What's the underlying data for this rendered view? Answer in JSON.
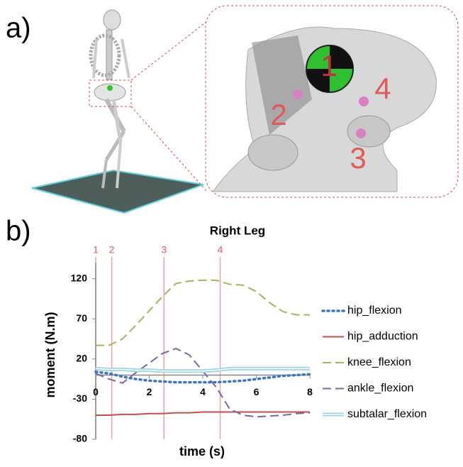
{
  "panel_labels": [
    "a)",
    "b)"
  ],
  "image_labels": [
    "1",
    "2",
    "3",
    "4"
  ],
  "chart_data": {
    "type": "line",
    "title": "Right Leg",
    "x_label": "time (s)",
    "y_label": "moment (N.m)",
    "x": [
      0,
      0.5,
      1,
      1.5,
      2,
      2.5,
      3,
      3.5,
      4,
      4.5,
      5,
      5.5,
      6,
      6.5,
      7,
      7.5,
      8
    ],
    "xlim": [
      0,
      8
    ],
    "xticks": [
      0,
      2,
      4,
      6,
      8
    ],
    "ylim": [
      -80,
      140
    ],
    "yticks": [
      -80,
      -30,
      20,
      70,
      120
    ],
    "legend": "right",
    "events": [
      {
        "x": 0,
        "label": "1"
      },
      {
        "x": 0.6,
        "label": "2"
      },
      {
        "x": 2.55,
        "label": "3"
      },
      {
        "x": 4.65,
        "label": "4"
      }
    ],
    "event_color": "#f0a0a8",
    "series": [
      {
        "name": "hip_flexion",
        "color": "#3a75c4",
        "style": "dotted",
        "values": [
          4,
          2,
          -2,
          -5,
          -7,
          -8,
          -9,
          -9,
          -9,
          -9,
          -8,
          -7,
          -5,
          -3,
          -1,
          0,
          1
        ]
      },
      {
        "name": "hip_adduction",
        "color": "#c0504d",
        "style": "solid",
        "values": [
          -50,
          -50,
          -49,
          -49,
          -48,
          -48,
          -47,
          -47,
          -46,
          -46,
          -46,
          -46,
          -46,
          -46,
          -46,
          -46,
          -46
        ]
      },
      {
        "name": "knee_flexion",
        "color": "#9bbb59",
        "style": "dashed",
        "values": [
          37,
          37,
          45,
          62,
          80,
          98,
          114,
          117,
          118,
          118,
          113,
          112,
          104,
          90,
          79,
          75,
          75
        ]
      },
      {
        "name": "ankle_flexion",
        "color": "#8064a2",
        "style": "dashed",
        "values": [
          2,
          -5,
          -10,
          3,
          15,
          27,
          33,
          25,
          5,
          -15,
          -42,
          -50,
          -52,
          -51,
          -50,
          -48,
          -47
        ]
      },
      {
        "name": "subtalar_flexion",
        "color": "#9dd3e6",
        "style": "double",
        "values": [
          8,
          7,
          7,
          6,
          6,
          5,
          5,
          5,
          5,
          6,
          8,
          8,
          8,
          8,
          8,
          8,
          8
        ]
      }
    ]
  }
}
